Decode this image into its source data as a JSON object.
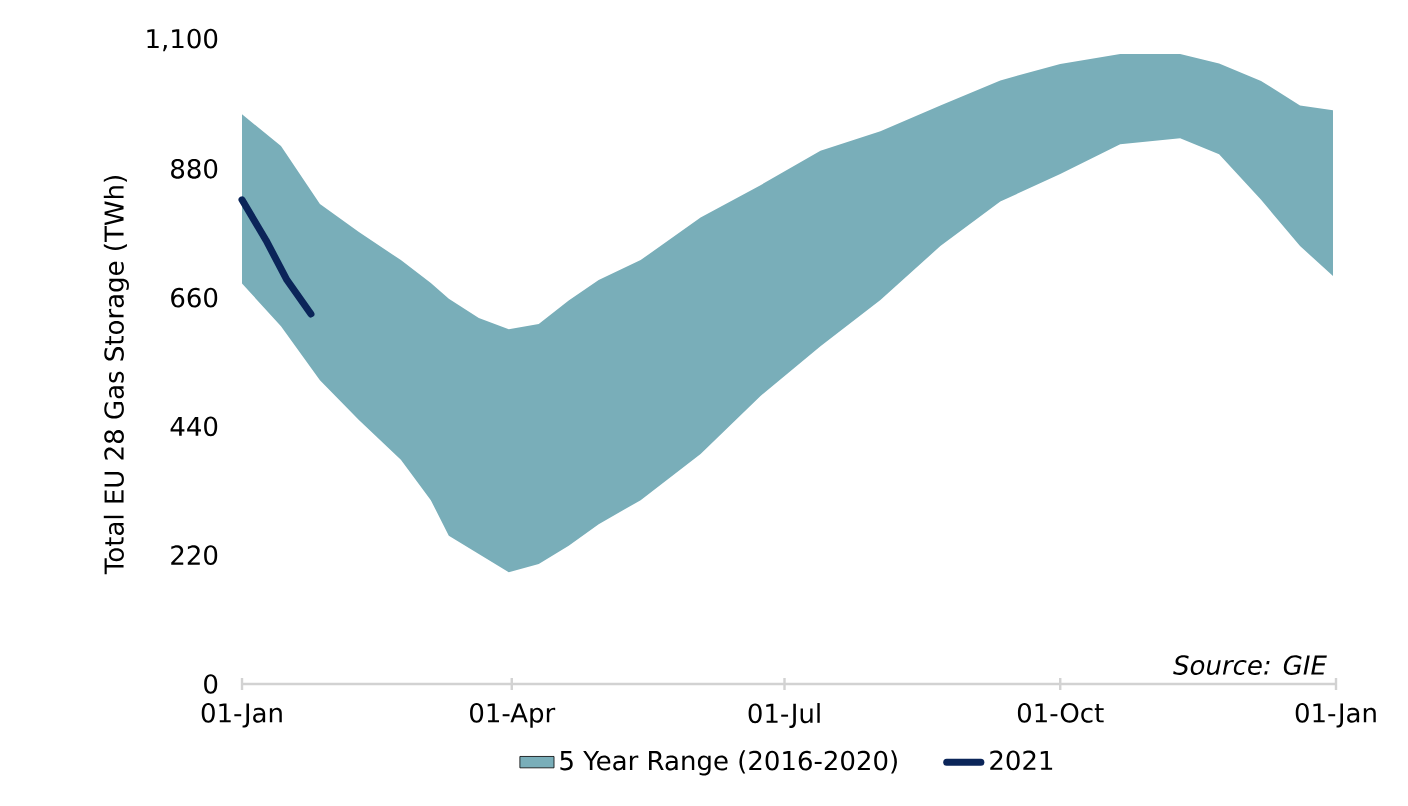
{
  "chart_data": {
    "type": "area",
    "ylabel": "Total EU 28 Gas Storage (TWh)",
    "xlim": [
      "2021-01-01",
      "2022-01-01"
    ],
    "xticks": [
      {
        "value": "2021-01-01",
        "label": "01-Jan"
      },
      {
        "value": "2021-04-01",
        "label": "01-Apr"
      },
      {
        "value": "2021-07-01",
        "label": "01-Jul"
      },
      {
        "value": "2021-10-01",
        "label": "01-Oct"
      },
      {
        "value": "2022-01-01",
        "label": "01-Jan"
      }
    ],
    "ylim": [
      0,
      1100
    ],
    "yticks": [
      {
        "value": 0,
        "label": "0"
      },
      {
        "value": 220,
        "label": "220"
      },
      {
        "value": 440,
        "label": "440"
      },
      {
        "value": 660,
        "label": "660"
      },
      {
        "value": 880,
        "label": "880"
      },
      {
        "value": 1100,
        "label": "1,100"
      }
    ],
    "legend": "bottom",
    "annotations": [
      "Source: GIE"
    ],
    "series": [
      {
        "name": "5 Year Range (2016-2020)",
        "type": "area",
        "color": "#79aeb9",
        "x": [
          "2021-01-01",
          "2021-01-14",
          "2021-01-27",
          "2021-02-09",
          "2021-02-23",
          "2021-03-05",
          "2021-03-11",
          "2021-03-21",
          "2021-03-31",
          "2021-04-10",
          "2021-04-20",
          "2021-04-30",
          "2021-05-14",
          "2021-06-03",
          "2021-06-23",
          "2021-07-13",
          "2021-08-02",
          "2021-08-22",
          "2021-09-11",
          "2021-10-01",
          "2021-10-21",
          "2021-11-10",
          "2021-11-23",
          "2021-12-07",
          "2021-12-20",
          "2021-12-31"
        ],
        "values": [
          null,
          null,
          null,
          null,
          null,
          null,
          null,
          null,
          null,
          null,
          null,
          null,
          null,
          null,
          null,
          null,
          null,
          null,
          null,
          null,
          null,
          null,
          null,
          null,
          null,
          null
        ],
        "lower": [
          684,
          611,
          519,
          451,
          383,
          314,
          253,
          222,
          191,
          205,
          236,
          273,
          314,
          393,
          492,
          577,
          656,
          748,
          824,
          871,
          922,
          932,
          905,
          827,
          748,
          697
        ],
        "upper": [
          973,
          919,
          820,
          772,
          724,
          685,
          658,
          625,
          606,
          615,
          655,
          690,
          724,
          797,
          852,
          911,
          944,
          988,
          1031,
          1059,
          1076,
          1076,
          1060,
          1030,
          988,
          980
        ]
      },
      {
        "name": "2021",
        "type": "line",
        "color": "#0b2559",
        "x": [
          "2021-01-01",
          "2021-01-09",
          "2021-01-16",
          "2021-01-24"
        ],
        "values": [
          827,
          758,
          690,
          632
        ]
      }
    ]
  }
}
